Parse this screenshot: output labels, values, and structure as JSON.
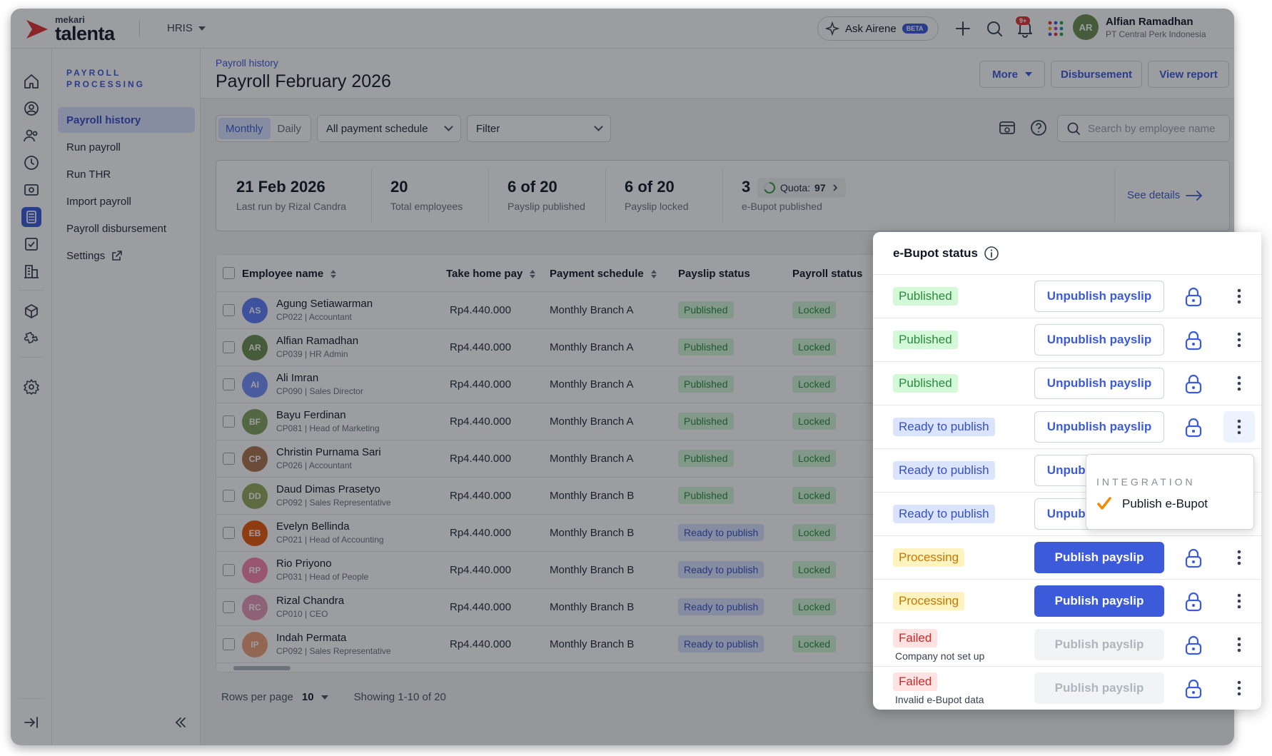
{
  "app": {
    "logo_small": "mekari",
    "logo_big": "talenta",
    "module": "HRIS",
    "ask_label": "Ask Airene",
    "beta_label": "BETA",
    "notifications_count": "9+",
    "user_name": "Alfian Ramadhan",
    "user_company": "PT Central Perk Indonesia"
  },
  "sidebar": {
    "section_title": "PAYROLL PROCESSING",
    "items": [
      {
        "label": "Payroll history"
      },
      {
        "label": "Run payroll"
      },
      {
        "label": "Run THR"
      },
      {
        "label": "Import payroll"
      },
      {
        "label": "Payroll disbursement"
      },
      {
        "label": "Settings"
      }
    ]
  },
  "header": {
    "breadcrumb": "Payroll history",
    "title": "Payroll February 2026",
    "more_label": "More",
    "disbursement_label": "Disbursement",
    "view_report_label": "View report"
  },
  "toolbar": {
    "monthly": "Monthly",
    "daily": "Daily",
    "schedule_select": "All payment schedule",
    "filter_select": "Filter",
    "search_placeholder": "Search by employee name"
  },
  "summary": {
    "run_date": "21 Feb 2026",
    "run_by": "Last run by Rizal Candra",
    "total_employees": "20",
    "total_employees_label": "Total employees",
    "payslip_published": "6 of 20",
    "payslip_published_label": "Payslip published",
    "payslip_locked": "6 of 20",
    "payslip_locked_label": "Payslip locked",
    "ebupot_published": "3",
    "quota_label": "Quota:",
    "quota_value": "97",
    "ebupot_published_label": "e-Bupot published",
    "see_details": "See details"
  },
  "table": {
    "headers": {
      "name": "Employee name",
      "take_home": "Take home pay",
      "schedule": "Payment schedule",
      "payslip_status": "Payslip status",
      "payroll_status": "Payroll status"
    },
    "rows": [
      {
        "name": "Agung Setiawarman",
        "sub": "CP022 | Accountant",
        "pay": "Rp4.440.000",
        "schedule": "Monthly Branch A",
        "payslip": "Published",
        "payroll": "Locked",
        "initials": "AS",
        "color": "#5c7cfa"
      },
      {
        "name": "Alfian Ramadhan",
        "sub": "CP039 | HR Admin",
        "pay": "Rp4.440.000",
        "schedule": "Monthly Branch A",
        "payslip": "Published",
        "payroll": "Locked",
        "initials": "AR",
        "color": "#6b8e4e"
      },
      {
        "name": "Ali Imran",
        "sub": "CP090 | Sales Director",
        "pay": "Rp4.440.000",
        "schedule": "Monthly Branch A",
        "payslip": "Published",
        "payroll": "Locked",
        "initials": "AI",
        "color": "#748ffc"
      },
      {
        "name": "Bayu Ferdinan",
        "sub": "CP081 | Head of Marketing",
        "pay": "Rp4.440.000",
        "schedule": "Monthly Branch A",
        "payslip": "Published",
        "payroll": "Locked",
        "initials": "BF",
        "color": "#82a35e"
      },
      {
        "name": "Christin Purnama Sari",
        "sub": "CP026 | Accountant",
        "pay": "Rp4.440.000",
        "schedule": "Monthly Branch A",
        "payslip": "Published",
        "payroll": "Locked",
        "initials": "CP",
        "color": "#a9744f"
      },
      {
        "name": "Daud Dimas Prasetyo",
        "sub": "CP092 | Sales Representative",
        "pay": "Rp4.440.000",
        "schedule": "Monthly Branch B",
        "payslip": "Published",
        "payroll": "Locked",
        "initials": "DD",
        "color": "#94a85a"
      },
      {
        "name": "Evelyn Bellinda",
        "sub": "CP021 | Head of Accounting",
        "pay": "Rp4.440.000",
        "schedule": "Monthly Branch B",
        "payslip": "Ready to publish",
        "payroll": "Locked",
        "initials": "EB",
        "color": "#e8590c"
      },
      {
        "name": "Rio Priyono",
        "sub": "CP031 | Head of People",
        "pay": "Rp4.440.000",
        "schedule": "Monthly Branch B",
        "payslip": "Ready to publish",
        "payroll": "Locked",
        "initials": "RP",
        "color": "#f783ac"
      },
      {
        "name": "Rizal Chandra",
        "sub": "CP010 | CEO",
        "pay": "Rp4.440.000",
        "schedule": "Monthly Branch B",
        "payslip": "Ready to publish",
        "payroll": "Locked",
        "initials": "RC",
        "color": "#e599b7"
      },
      {
        "name": "Indah Permata",
        "sub": "CP092 | Sales Representative",
        "pay": "Rp4.440.000",
        "schedule": "Monthly Branch B",
        "payslip": "Ready to publish",
        "payroll": "Locked",
        "initials": "IP",
        "color": "#f0a07a"
      }
    ]
  },
  "pager": {
    "rows_per_page_label": "Rows per page",
    "rows_per_page": "10",
    "showing": "Showing 1-10 of 20"
  },
  "ebupot_panel": {
    "title": "e-Bupot status",
    "rows": [
      {
        "status": "Published",
        "kind": "pub",
        "button": "Unpublish payslip",
        "btn_style": "outline",
        "note": ""
      },
      {
        "status": "Published",
        "kind": "pub",
        "button": "Unpublish payslip",
        "btn_style": "outline",
        "note": ""
      },
      {
        "status": "Published",
        "kind": "pub",
        "button": "Unpublish payslip",
        "btn_style": "outline",
        "note": ""
      },
      {
        "status": "Ready to publish",
        "kind": "ready",
        "button": "Unpublish payslip",
        "btn_style": "outline",
        "note": ""
      },
      {
        "status": "Ready to publish",
        "kind": "ready",
        "button": "Unpublish payslip",
        "btn_style": "outline",
        "note": ""
      },
      {
        "status": "Ready to publish",
        "kind": "ready",
        "button": "Unpublish payslip",
        "btn_style": "outline",
        "note": ""
      },
      {
        "status": "Processing",
        "kind": "proc",
        "button": "Publish payslip",
        "btn_style": "primary",
        "note": ""
      },
      {
        "status": "Processing",
        "kind": "proc",
        "button": "Publish payslip",
        "btn_style": "primary",
        "note": ""
      },
      {
        "status": "Failed",
        "kind": "fail",
        "button": "Publish payslip",
        "btn_style": "disabled",
        "note": "Company not set up"
      },
      {
        "status": "Failed",
        "kind": "fail",
        "button": "Publish payslip",
        "btn_style": "disabled",
        "note": "Invalid e-Bupot data"
      }
    ]
  },
  "context_menu": {
    "section": "INTEGRATION",
    "item": "Publish e-Bupot"
  },
  "colors": {
    "brand_red": "#e03131",
    "accent": "#3b5bdb"
  }
}
